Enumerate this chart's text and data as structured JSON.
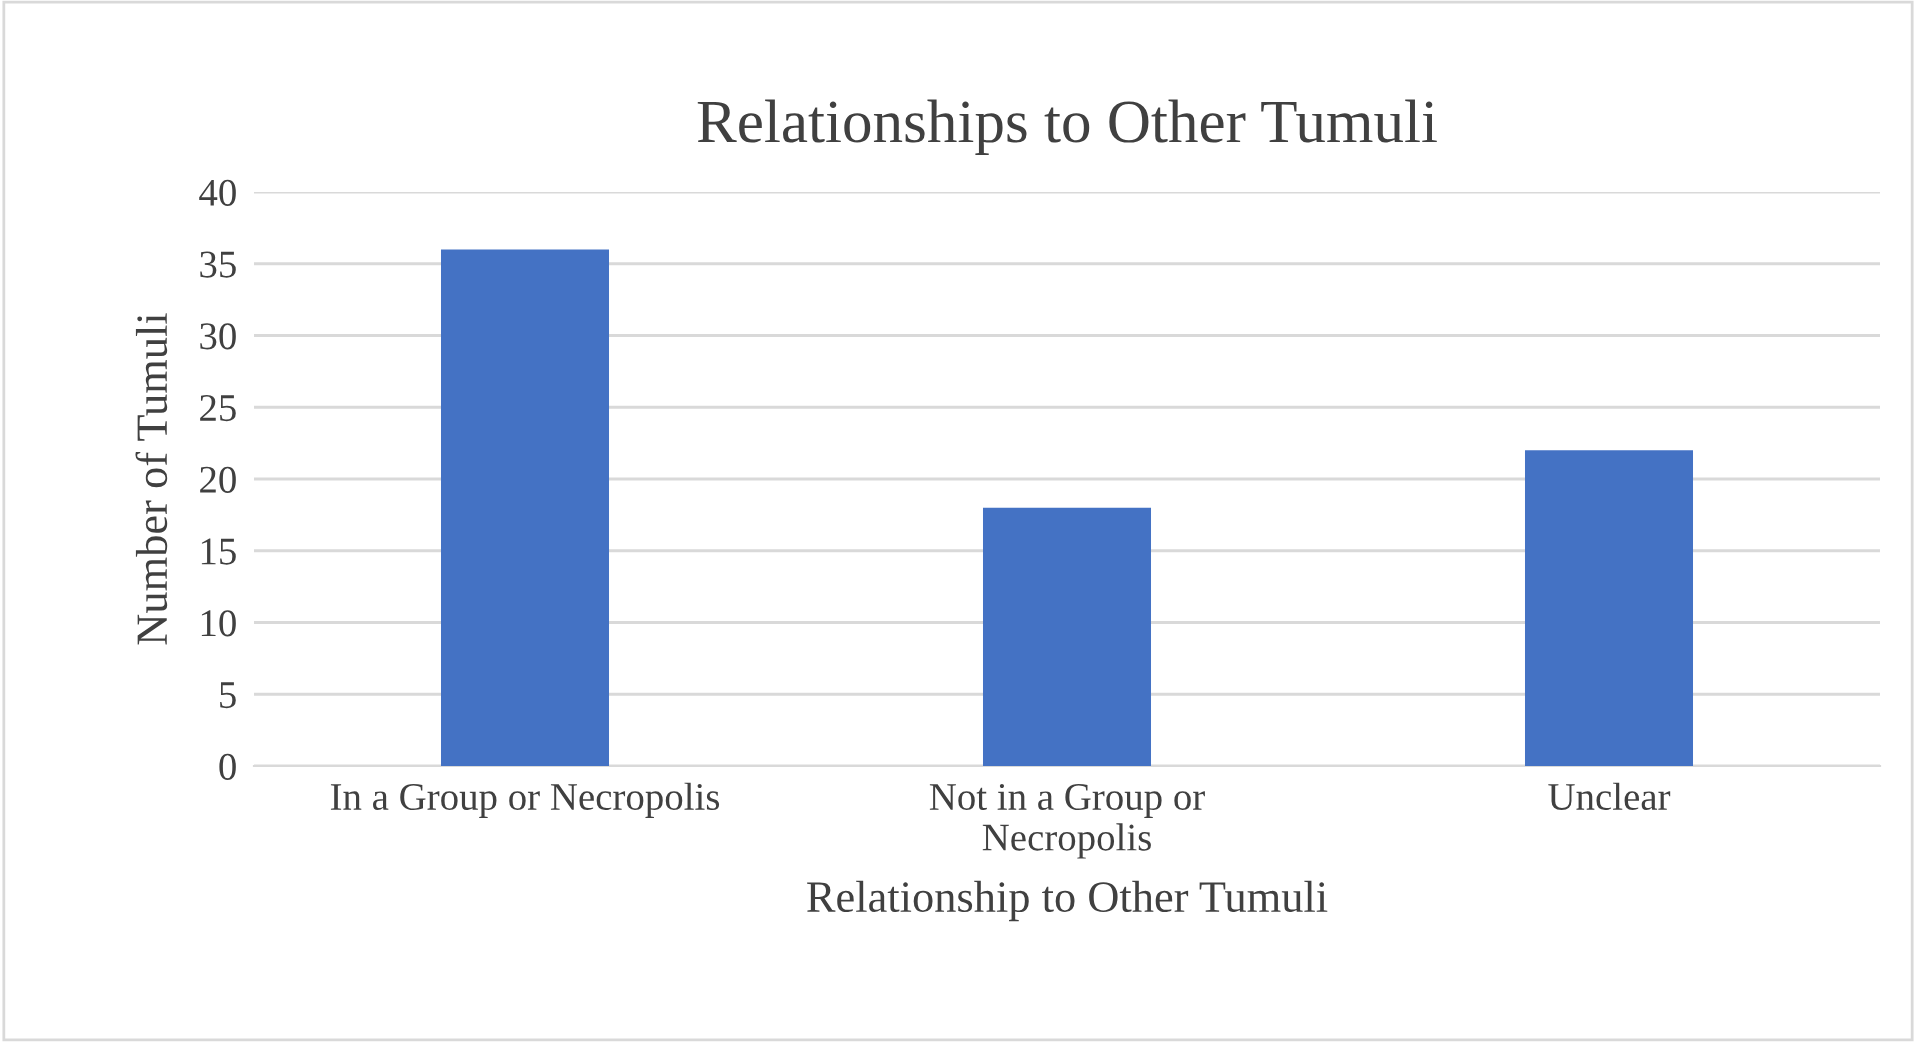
{
  "chart_data": {
    "type": "bar",
    "title": "Relationships to Other Tumuli",
    "xlabel": "Relationship to Other Tumuli",
    "ylabel": "Number of Tumuli",
    "categories": [
      "In a Group or Necropolis",
      "Not in a Group or Necropolis",
      "Unclear"
    ],
    "values": [
      36,
      18,
      22
    ],
    "color": "#4472c4",
    "ylim": [
      0,
      40
    ],
    "yticks": [
      0,
      5,
      10,
      15,
      20,
      25,
      30,
      35,
      40
    ],
    "grid": "y",
    "legend": false
  }
}
